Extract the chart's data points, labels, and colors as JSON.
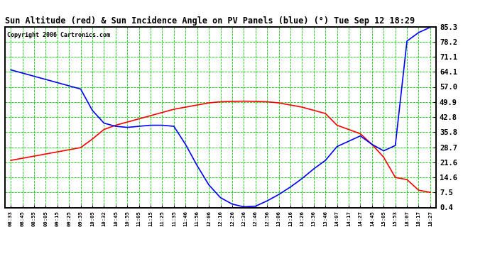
{
  "title": "Sun Altitude (red) & Sun Incidence Angle on PV Panels (blue) (°) Tue Sep 12 18:29",
  "copyright": "Copyright 2006 Cartronics.com",
  "fig_bg": "#ffffff",
  "plot_bg": "#ffffff",
  "grid_color": "#00cc00",
  "border_color": "#000000",
  "yticks": [
    0.4,
    7.5,
    14.6,
    21.6,
    28.7,
    35.8,
    42.8,
    49.9,
    57.0,
    64.1,
    71.1,
    78.2,
    85.3
  ],
  "xtick_labels": [
    "08:33",
    "08:45",
    "08:55",
    "09:05",
    "09:15",
    "09:25",
    "09:35",
    "10:05",
    "10:32",
    "10:45",
    "10:55",
    "11:05",
    "11:15",
    "11:25",
    "11:35",
    "11:46",
    "11:56",
    "12:06",
    "12:16",
    "12:26",
    "12:36",
    "12:46",
    "12:56",
    "13:06",
    "13:16",
    "13:26",
    "13:36",
    "13:46",
    "14:07",
    "14:17",
    "14:27",
    "14:45",
    "15:05",
    "15:53",
    "18:07",
    "18:17",
    "18:27"
  ],
  "red_x": [
    0,
    1,
    2,
    3,
    4,
    5,
    6,
    7,
    8,
    9,
    10,
    11,
    12,
    13,
    14,
    15,
    16,
    17,
    18,
    19,
    20,
    21,
    22,
    23,
    24,
    25,
    26,
    27,
    28,
    29,
    30,
    31,
    32,
    33,
    34,
    35,
    36
  ],
  "red_y": [
    22.5,
    23.5,
    24.5,
    25.5,
    26.5,
    27.5,
    28.5,
    32.5,
    37.0,
    39.0,
    40.5,
    42.0,
    43.5,
    45.0,
    46.5,
    47.5,
    48.5,
    49.5,
    50.0,
    50.2,
    50.3,
    50.2,
    50.0,
    49.5,
    48.5,
    47.5,
    46.0,
    44.5,
    39.0,
    37.0,
    35.0,
    30.0,
    24.0,
    14.5,
    13.5,
    8.5,
    7.5
  ],
  "blue_x": [
    0,
    1,
    2,
    3,
    4,
    5,
    6,
    7,
    8,
    9,
    10,
    11,
    12,
    13,
    14,
    15,
    16,
    17,
    18,
    19,
    20,
    21,
    22,
    23,
    24,
    25,
    26,
    27,
    28,
    29,
    30,
    31,
    32,
    33,
    34,
    35,
    36
  ],
  "blue_y": [
    65.0,
    63.5,
    62.0,
    60.5,
    59.0,
    57.5,
    56.0,
    46.0,
    40.0,
    38.5,
    38.0,
    38.5,
    39.0,
    39.0,
    38.5,
    30.0,
    20.0,
    11.0,
    5.0,
    2.0,
    0.7,
    1.0,
    3.5,
    6.5,
    10.0,
    14.0,
    18.5,
    22.5,
    29.0,
    31.5,
    34.0,
    30.0,
    27.0,
    29.5,
    78.5,
    82.5,
    85.0
  ]
}
